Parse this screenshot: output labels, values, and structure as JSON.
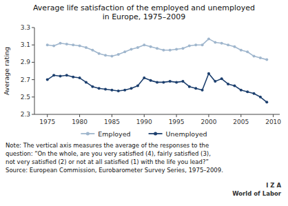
{
  "chart_data": {
    "type": "line",
    "title": "Average life satisfaction of the employed and unemployed\nin Europe, 1975–2009",
    "ylabel": "Average rating",
    "x": [
      1975,
      1976,
      1977,
      1978,
      1979,
      1980,
      1981,
      1982,
      1983,
      1984,
      1985,
      1986,
      1987,
      1988,
      1989,
      1990,
      1991,
      1992,
      1993,
      1994,
      1995,
      1996,
      1997,
      1998,
      1999,
      2000,
      2001,
      2002,
      2003,
      2004,
      2005,
      2006,
      2007,
      2008,
      2009
    ],
    "series": [
      {
        "name": "Employed",
        "color": "#9FB6CD",
        "values": [
          3.1,
          3.09,
          3.12,
          3.11,
          3.1,
          3.09,
          3.07,
          3.04,
          3.0,
          2.98,
          2.97,
          2.99,
          3.02,
          3.05,
          3.07,
          3.1,
          3.08,
          3.06,
          3.04,
          3.04,
          3.05,
          3.06,
          3.09,
          3.1,
          3.1,
          3.17,
          3.13,
          3.12,
          3.1,
          3.08,
          3.04,
          3.02,
          2.97,
          2.95,
          2.93
        ]
      },
      {
        "name": "Unemployed",
        "color": "#1C3F6E",
        "values": [
          2.7,
          2.75,
          2.74,
          2.75,
          2.73,
          2.72,
          2.67,
          2.62,
          2.6,
          2.59,
          2.58,
          2.57,
          2.58,
          2.6,
          2.63,
          2.72,
          2.69,
          2.67,
          2.67,
          2.68,
          2.67,
          2.68,
          2.62,
          2.6,
          2.58,
          2.77,
          2.68,
          2.71,
          2.65,
          2.63,
          2.58,
          2.56,
          2.54,
          2.5,
          2.44
        ]
      }
    ],
    "xlim": [
      1973,
      2011
    ],
    "xticks": [
      1975,
      1980,
      1985,
      1990,
      1995,
      2000,
      2005,
      2010
    ],
    "ylim": [
      2.3,
      3.3
    ],
    "yticks": [
      2.3,
      2.5,
      2.7,
      2.9,
      3.1,
      3.3
    ],
    "marker": "circle",
    "grid": false,
    "legend": "bottom",
    "annotations": [
      "Note: The vertical axis measures the average of the responses to the",
      "question: “On the whole, are you very satisfied (4), fairly satisfied (3),",
      "not very satisfied (2) or not at all satisfied (1) with the life you lead?”",
      "Source: European Commission, Eurobarometer Survey Series, 1975–2009."
    ],
    "footer": [
      "I Z A",
      "World of Labor"
    ]
  }
}
